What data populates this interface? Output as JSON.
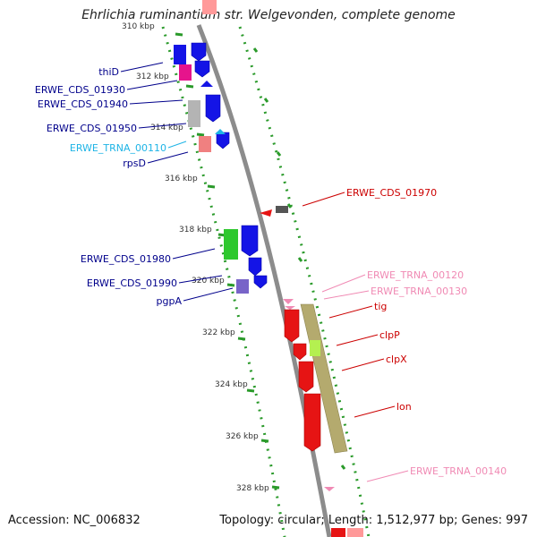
{
  "title": "Ehrlichia ruminantium str. Welgevonden, complete genome",
  "footer": {
    "accession": "Accession: NC_006832",
    "summary": "Topology: circular; Length: 1,512,977 bp; Genes: 997"
  },
  "scale_ticks": [
    {
      "label": "310 kbp"
    },
    {
      "label": "312 kbp"
    },
    {
      "label": "314 kbp"
    },
    {
      "label": "316 kbp"
    },
    {
      "label": "318 kbp"
    },
    {
      "label": "320 kbp"
    },
    {
      "label": "322 kbp"
    },
    {
      "label": "324 kbp"
    },
    {
      "label": "326 kbp"
    },
    {
      "label": "328 kbp"
    }
  ],
  "gene_labels_left": [
    {
      "label": "thiD",
      "color": "#00008b"
    },
    {
      "label": "ERWE_CDS_01930",
      "color": "#00008b"
    },
    {
      "label": "ERWE_CDS_01940",
      "color": "#00008b"
    },
    {
      "label": "ERWE_CDS_01950",
      "color": "#00008b"
    },
    {
      "label": "ERWE_TRNA_00110",
      "color": "#1eb4e6"
    },
    {
      "label": "rpsD",
      "color": "#00008b"
    },
    {
      "label": "ERWE_CDS_01980",
      "color": "#00008b"
    },
    {
      "label": "ERWE_CDS_01990",
      "color": "#00008b"
    },
    {
      "label": "pgpA",
      "color": "#00008b"
    }
  ],
  "gene_labels_right": [
    {
      "label": "ERWE_CDS_01970",
      "color": "#cc0000"
    },
    {
      "label": "ERWE_TRNA_00120",
      "color": "#f08ab4"
    },
    {
      "label": "ERWE_TRNA_00130",
      "color": "#f08ab4"
    },
    {
      "label": "tig",
      "color": "#cc0000"
    },
    {
      "label": "clpP",
      "color": "#cc0000"
    },
    {
      "label": "clpX",
      "color": "#cc0000"
    },
    {
      "label": "lon",
      "color": "#cc0000"
    },
    {
      "label": "ERWE_TRNA_00140",
      "color": "#f08ab4"
    }
  ],
  "colors": {
    "backbone": "#8c8c8c",
    "dotted_track": "#2a9a2a",
    "forward_gene": "#1414e6",
    "reverse_gene": "#e61414",
    "pseudo_gene": "#b4aa6e",
    "trna": "#f08ab4"
  }
}
